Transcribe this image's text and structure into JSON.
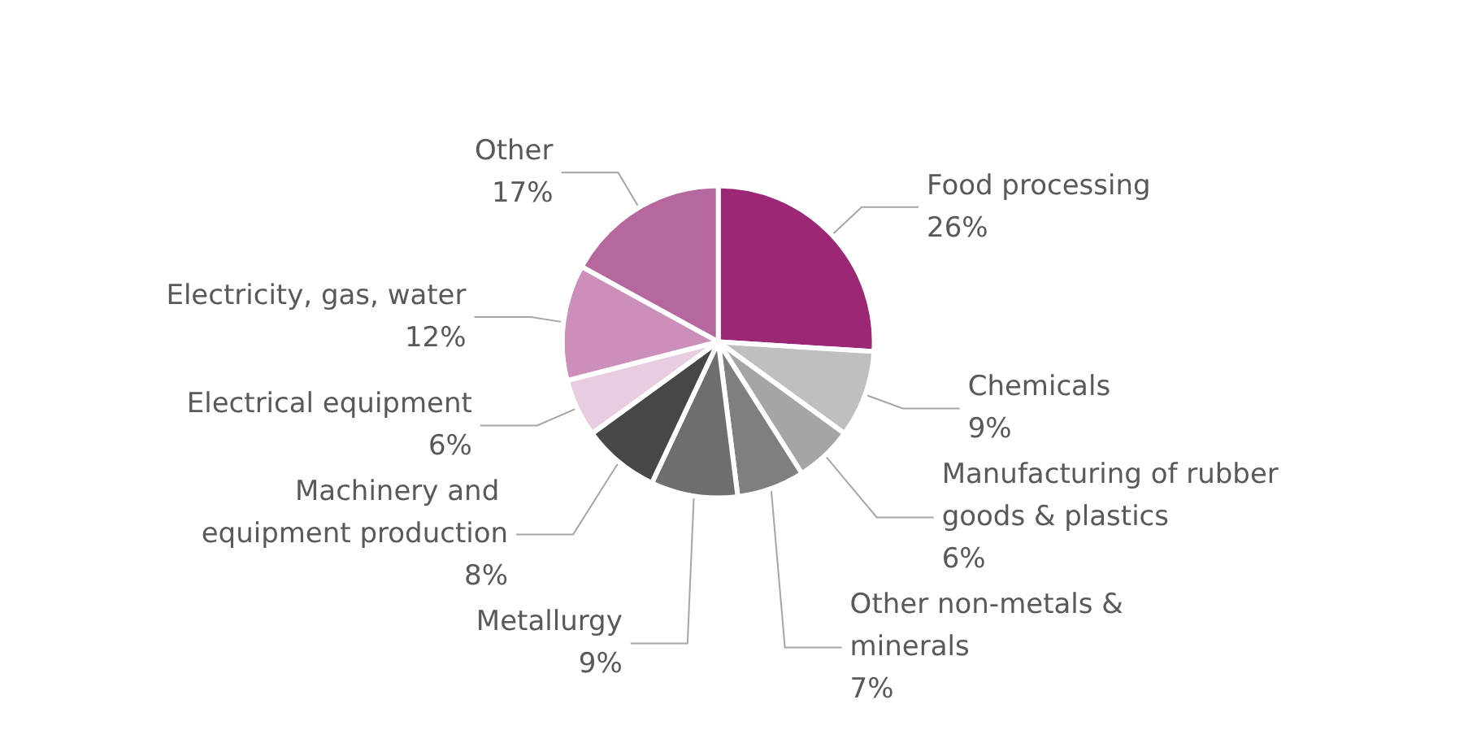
{
  "chart_data": {
    "type": "pie",
    "categories": [
      "Food processing",
      "Chemicals",
      "Manufacturing of rubber goods & plastics",
      "Other non-metals & minerals",
      "Metallurgy",
      "Machinery and equipment production",
      "Electrical equipment",
      "Electricity, gas, water",
      "Other"
    ],
    "values": [
      26,
      9,
      6,
      7,
      9,
      8,
      6,
      12,
      17
    ],
    "value_labels": [
      "26%",
      "9%",
      "6%",
      "7%",
      "9%",
      "8%",
      "6%",
      "12%",
      "17%"
    ],
    "colors": [
      "#9b2775",
      "#bfbfbf",
      "#a5a5a5",
      "#7f7f7f",
      "#6e6e6e",
      "#474747",
      "#e8cde0",
      "#cc8fba",
      "#b5679e"
    ],
    "legend": false
  }
}
